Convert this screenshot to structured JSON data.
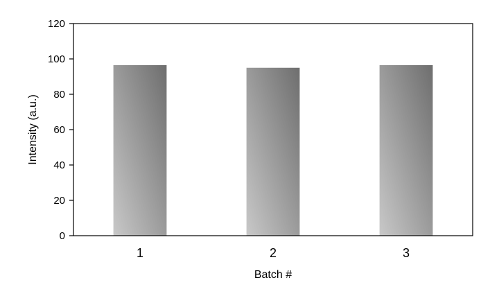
{
  "chart_data": {
    "type": "bar",
    "categories": [
      "1",
      "2",
      "3"
    ],
    "values": [
      96.5,
      95,
      96.5
    ],
    "title": "",
    "xlabel": "Batch #",
    "ylabel": "Intensity (a.u.)",
    "ylim": [
      0,
      120
    ],
    "yticks": [
      "0",
      "20",
      "40",
      "60",
      "80",
      "100",
      "120"
    ],
    "grid": false,
    "legend": "none",
    "bar_color_light": "#c8c8c8",
    "bar_color_dark": "#6e6e6e"
  }
}
